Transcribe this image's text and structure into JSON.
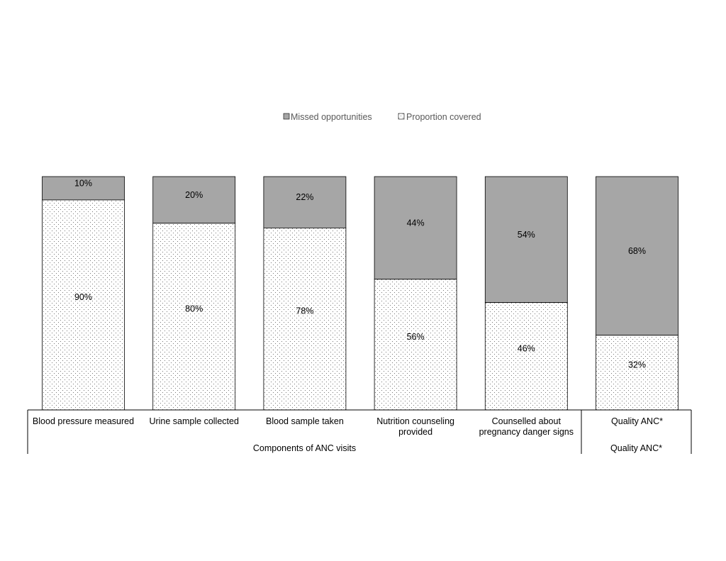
{
  "chart_data": {
    "type": "bar",
    "stacked": true,
    "categories": [
      [
        "Blood pressure measured"
      ],
      [
        "Urine sample collected"
      ],
      [
        "Blood sample taken"
      ],
      [
        "Nutrition counseling",
        "provided"
      ],
      [
        "Counselled about",
        "pregnancy danger signs"
      ],
      [
        "Quality ANC*"
      ]
    ],
    "groups": [
      {
        "label": "Components of ANC visits",
        "start": 0,
        "end": 4
      },
      {
        "label": "Quality ANC*",
        "start": 5,
        "end": 5
      }
    ],
    "series": [
      {
        "name": "Proportion covered",
        "pattern": "dotted",
        "values": [
          90,
          80,
          78,
          56,
          46,
          32
        ],
        "labels": [
          "90%",
          "80%",
          "78%",
          "56%",
          "46%",
          "32%"
        ]
      },
      {
        "name": "Missed opportunities",
        "color": "#a6a6a6",
        "values": [
          10,
          20,
          22,
          44,
          54,
          68
        ],
        "labels": [
          "10%",
          "20%",
          "22%",
          "44%",
          "54%",
          "68%"
        ]
      }
    ],
    "ylim": [
      0,
      100
    ],
    "legend": {
      "position": "top-center",
      "entries": [
        "Missed opportunities",
        "Proportion covered"
      ]
    },
    "title": "",
    "xlabel": "",
    "ylabel": ""
  }
}
